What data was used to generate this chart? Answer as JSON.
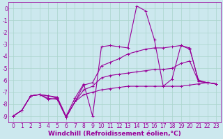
{
  "background_color": "#cce8ee",
  "grid_color": "#aad4cc",
  "line_color": "#990099",
  "xlabel": "Windchill (Refroidissement éolien,°C)",
  "xlabel_fontsize": 6.5,
  "tick_fontsize": 5.5,
  "xlim": [
    -0.5,
    23.5
  ],
  "ylim": [
    -9.5,
    0.5
  ],
  "yticks": [
    0,
    -1,
    -2,
    -3,
    -4,
    -5,
    -6,
    -7,
    -8,
    -9
  ],
  "xticks": [
    0,
    1,
    2,
    3,
    4,
    5,
    6,
    7,
    8,
    9,
    10,
    11,
    12,
    13,
    14,
    15,
    16,
    17,
    18,
    19,
    20,
    21,
    22,
    23
  ],
  "lines": [
    {
      "x": [
        0,
        1,
        2,
        3,
        4,
        5,
        6,
        7,
        8,
        9,
        10,
        11,
        12,
        13,
        14,
        15,
        16,
        17,
        18,
        19,
        20,
        21,
        22,
        23
      ],
      "y": [
        -9.0,
        -8.5,
        -7.3,
        -7.2,
        -7.3,
        -7.4,
        -9.0,
        -7.5,
        -6.3,
        -9.0,
        -3.2,
        -3.1,
        -3.2,
        -3.3,
        0.2,
        -0.2,
        -2.6,
        -6.5,
        -5.9,
        -3.1,
        -3.4,
        -6.0,
        -6.2,
        -6.3
      ]
    },
    {
      "x": [
        0,
        1,
        2,
        3,
        4,
        5,
        6,
        7,
        8,
        9,
        10,
        11,
        12,
        13,
        14,
        15,
        16,
        17,
        18,
        19,
        20,
        21,
        22,
        23
      ],
      "y": [
        -9.0,
        -8.5,
        -7.3,
        -7.2,
        -7.6,
        -7.5,
        -9.1,
        -7.8,
        -6.4,
        -6.2,
        -4.8,
        -4.5,
        -4.2,
        -3.8,
        -3.6,
        -3.4,
        -3.3,
        -3.3,
        -3.2,
        -3.1,
        -3.3,
        -6.1,
        -6.2,
        -6.3
      ]
    },
    {
      "x": [
        0,
        1,
        2,
        3,
        4,
        5,
        6,
        7,
        8,
        9,
        10,
        11,
        12,
        13,
        14,
        15,
        16,
        17,
        18,
        19,
        20,
        21,
        22,
        23
      ],
      "y": [
        -9.0,
        -8.5,
        -7.3,
        -7.2,
        -7.3,
        -7.5,
        -9.1,
        -7.8,
        -6.8,
        -6.5,
        -5.8,
        -5.6,
        -5.5,
        -5.4,
        -5.3,
        -5.2,
        -5.1,
        -5.1,
        -5.0,
        -4.6,
        -4.4,
        -6.1,
        -6.2,
        -6.3
      ]
    },
    {
      "x": [
        0,
        1,
        2,
        3,
        4,
        5,
        6,
        7,
        8,
        9,
        10,
        11,
        12,
        13,
        14,
        15,
        16,
        17,
        18,
        19,
        20,
        21,
        22,
        23
      ],
      "y": [
        -9.0,
        -8.5,
        -7.3,
        -7.2,
        -7.5,
        -7.6,
        -9.1,
        -7.8,
        -7.2,
        -7.0,
        -6.8,
        -6.7,
        -6.6,
        -6.5,
        -6.5,
        -6.5,
        -6.5,
        -6.5,
        -6.5,
        -6.5,
        -6.4,
        -6.3,
        -6.2,
        -6.3
      ]
    }
  ]
}
